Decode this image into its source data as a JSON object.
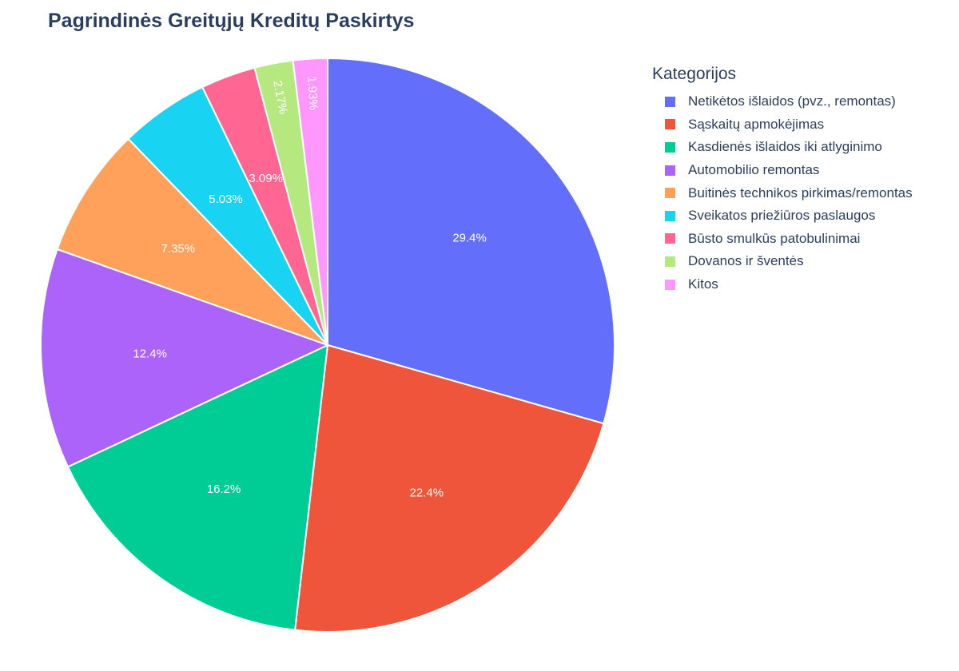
{
  "chart_data": {
    "type": "pie",
    "title": "Pagrindinės Greitųjų Kreditų Paskirtys",
    "legend_title": "Kategorijos",
    "legend_position": "right",
    "categories": [
      "Netikėtos išlaidos (pvz., remontas)",
      "Sąskaitų apmokėjimas",
      "Kasdienės išlaidos iki atlyginimo",
      "Automobilio remontas",
      "Buitinės technikos pirkimas/remontas",
      "Sveikatos priežiūros paslaugos",
      "Būsto smulkūs patobulinimai",
      "Dovanos ir šventės",
      "Kitos"
    ],
    "values": [
      29.4,
      22.4,
      16.2,
      12.4,
      7.35,
      5.03,
      3.09,
      2.17,
      1.93
    ],
    "labels": [
      "29.4%",
      "22.4%",
      "16.2%",
      "12.4%",
      "7.35%",
      "5.03%",
      "3.09%",
      "2.17%",
      "1.93%"
    ],
    "colors": [
      "#636efa",
      "#ef553b",
      "#00cc96",
      "#ab63fa",
      "#ffa15a",
      "#19d3f3",
      "#ff6692",
      "#b6e880",
      "#ff97ff"
    ],
    "direction": "clockwise",
    "start": "top"
  }
}
